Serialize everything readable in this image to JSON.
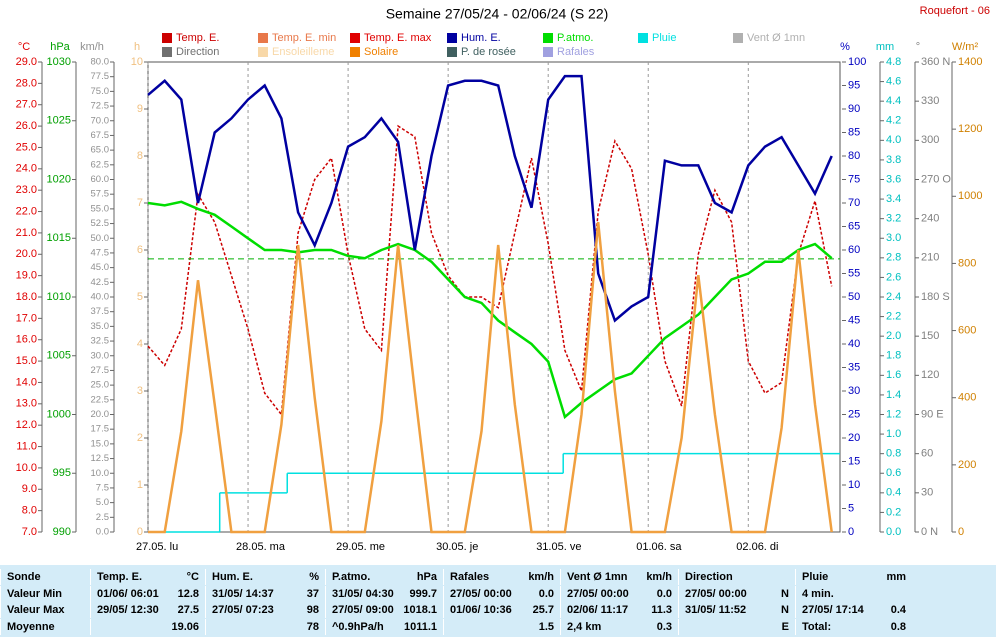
{
  "chart_data": {
    "type": "line",
    "title": "Semaine 27/05/24 - 02/06/24 (S 22)",
    "station": "Roquefort - 06",
    "xlim": [
      0,
      166
    ],
    "xticks": [
      {
        "value": 0,
        "label": "27.05.  lu"
      },
      {
        "value": 24,
        "label": "28.05.  ma"
      },
      {
        "value": 48,
        "label": "29.05.  me"
      },
      {
        "value": 72,
        "label": "30.05.  je"
      },
      {
        "value": 96,
        "label": "31.05.  ve"
      },
      {
        "value": 120,
        "label": "01.06.  sa"
      },
      {
        "value": 144,
        "label": "02.06.  di"
      }
    ],
    "x": [
      0,
      4,
      8,
      12,
      16,
      20,
      24,
      28,
      32,
      36,
      40,
      44,
      48,
      52,
      56,
      60,
      64,
      68,
      72,
      76,
      80,
      84,
      88,
      92,
      96,
      100,
      104,
      108,
      112,
      116,
      120,
      124,
      128,
      132,
      136,
      140,
      144,
      148,
      152,
      156,
      160,
      164
    ],
    "legend": [
      {
        "name": "Temp. E.",
        "color": "#cc0000"
      },
      {
        "name": "Temp. E. min",
        "color": "#e8784a"
      },
      {
        "name": "Temp. E. max",
        "color": "#e00000"
      },
      {
        "name": "Hum. E.",
        "color": "#0000a0"
      },
      {
        "name": "P.atmo.",
        "color": "#00dd00"
      },
      {
        "name": "Pluie",
        "color": "#00e0e0"
      },
      {
        "name": "Vent Ø 1mn",
        "color": "#b0b0b0"
      },
      {
        "name": "Direction",
        "color": "#707070"
      },
      {
        "name": "Ensoleilleme",
        "color": "#f8d8a8"
      },
      {
        "name": "Solaire",
        "color": "#f08000"
      },
      {
        "name": "P. de rosée",
        "color": "#406060"
      },
      {
        "name": "Rafales",
        "color": "#a0a0e0"
      }
    ],
    "axes": [
      {
        "label": "°C",
        "color": "#e00000",
        "lim": [
          7,
          29
        ],
        "ticks": [
          {
            "value": 29,
            "label": "29.0"
          },
          {
            "value": 28,
            "label": "28.0"
          },
          {
            "value": 27,
            "label": "27.0"
          },
          {
            "value": 26,
            "label": "26.0"
          },
          {
            "value": 25,
            "label": "25.0"
          },
          {
            "value": 24,
            "label": "24.0"
          },
          {
            "value": 23,
            "label": "23.0"
          },
          {
            "value": 22,
            "label": "22.0"
          },
          {
            "value": 21,
            "label": "21.0"
          },
          {
            "value": 20,
            "label": "20.0"
          },
          {
            "value": 19,
            "label": "19.0"
          },
          {
            "value": 18,
            "label": "18.0"
          },
          {
            "value": 17,
            "label": "17.0"
          },
          {
            "value": 16,
            "label": "16.0"
          },
          {
            "value": 15,
            "label": "15.0"
          },
          {
            "value": 14,
            "label": "14.0"
          },
          {
            "value": 13,
            "label": "13.0"
          },
          {
            "value": 12,
            "label": "12.0"
          },
          {
            "value": 11,
            "label": "11.0"
          },
          {
            "value": 10,
            "label": "10.0"
          },
          {
            "value": 9,
            "label": "9.0"
          },
          {
            "value": 8,
            "label": "8.0"
          },
          {
            "value": 7,
            "label": "7.0"
          }
        ],
        "series": [
          {
            "color": "#cc0000",
            "dashed": true,
            "values": [
              15.7,
              14.8,
              16.5,
              22.8,
              21.5,
              19.0,
              16.5,
              13.5,
              12.5,
              21.0,
              23.5,
              24.5,
              20.0,
              16.5,
              15.5,
              26.0,
              25.5,
              21.0,
              19.0,
              18.0,
              18.0,
              17.5,
              21.0,
              24.5,
              20.5,
              15.5,
              13.6,
              22.0,
              25.3,
              24.0,
              20.0,
              15.0,
              12.9,
              20.0,
              23.0,
              21.5,
              15.0,
              13.5,
              14.0,
              20.0,
              22.5,
              18.5
            ]
          }
        ]
      },
      {
        "label": "hPa",
        "color": "#00a000",
        "lim": [
          990,
          1030
        ],
        "ticks": [
          1030,
          1025,
          1020,
          1015,
          1010,
          1005,
          1000,
          995,
          990
        ],
        "reference": 1013.25,
        "series": [
          {
            "color": "#00dd00",
            "values": [
              1018,
              1017.8,
              1018.1,
              1017.5,
              1017,
              1016,
              1015,
              1014,
              1014,
              1013.8,
              1014,
              1014,
              1013.5,
              1013.3,
              1014,
              1014.5,
              1014,
              1013,
              1011.5,
              1010,
              1009.5,
              1008,
              1007,
              1006,
              1004.5,
              999.8,
              1001,
              1002,
              1003,
              1003.5,
              1005,
              1006.5,
              1007.5,
              1008.5,
              1010,
              1011.5,
              1012,
              1013,
              1013,
              1014,
              1014.5,
              1013.3
            ]
          }
        ]
      },
      {
        "label": "km/h",
        "color": "#909090",
        "lim": [
          0,
          80
        ],
        "ticks": [
          {
            "value": 80,
            "label": "80.0"
          },
          77.5,
          {
            "value": 75,
            "label": "75.0"
          },
          72.5,
          {
            "value": 70,
            "label": "70.0"
          },
          67.5,
          {
            "value": 65,
            "label": "65.0"
          },
          62.5,
          {
            "value": 60,
            "label": "60.0"
          },
          57.5,
          {
            "value": 55,
            "label": "55.0"
          },
          52.5,
          {
            "value": 50,
            "label": "50.0"
          },
          47.5,
          {
            "value": 45,
            "label": "45.0"
          },
          42.5,
          {
            "value": 40,
            "label": "40.0"
          },
          37.5,
          {
            "value": 35,
            "label": "35.0"
          },
          32.5,
          {
            "value": 30,
            "label": "30.0"
          },
          27.5,
          {
            "value": 25,
            "label": "25.0"
          },
          22.5,
          {
            "value": 20,
            "label": "20.0"
          },
          17.5,
          {
            "value": 15,
            "label": "15.0"
          },
          12.5,
          {
            "value": 10,
            "label": "10.0"
          },
          7.5,
          {
            "value": 5,
            "label": "5.0"
          },
          2.5,
          {
            "value": 0,
            "label": "0.0"
          }
        ]
      },
      {
        "label": "h",
        "color": "#f0c080",
        "lim": [
          0,
          10
        ],
        "ticks": [
          10,
          9,
          8,
          7,
          6,
          5,
          4,
          3,
          2,
          1,
          0
        ]
      },
      {
        "label": "%",
        "color": "#0000c0",
        "lim": [
          0,
          100
        ],
        "ticks": [
          100,
          95,
          90,
          85,
          80,
          75,
          70,
          65,
          60,
          55,
          50,
          45,
          40,
          35,
          30,
          25,
          20,
          15,
          10,
          5,
          0
        ],
        "series": [
          {
            "color": "#0000a0",
            "values": [
              93,
              96,
              92,
              70,
              85,
              88,
              92,
              95,
              88,
              68,
              61,
              70,
              82,
              84,
              88,
              83,
              60,
              80,
              95,
              96,
              96,
              95,
              80,
              69,
              92,
              97,
              97,
              55,
              45,
              48,
              50,
              79,
              78,
              78,
              70,
              68,
              78,
              82,
              84,
              78,
              72,
              80
            ]
          }
        ]
      },
      {
        "label": "mm",
        "color": "#00c0c0",
        "lim": [
          0,
          4.8
        ],
        "ticks": [
          4.8,
          4.6,
          4.4,
          4.2,
          {
            "value": 4,
            "label": "4.0"
          },
          3.8,
          3.6,
          3.4,
          3.2,
          {
            "value": 3,
            "label": "3.0"
          },
          2.8,
          2.6,
          2.4,
          2.2,
          {
            "value": 2,
            "label": "2.0"
          },
          1.8,
          1.6,
          1.4,
          1.2,
          {
            "value": 1,
            "label": "1.0"
          },
          0.8,
          0.6,
          0.4,
          0.2,
          {
            "value": 0,
            "label": "0.0"
          }
        ],
        "steps": {
          "color": "#00e0e0",
          "x": [
            0,
            17.2,
            33.4,
            99.6,
            166
          ],
          "values": [
            0,
            0.4,
            0.6,
            0.8,
            0.8
          ]
        }
      },
      {
        "label": "°",
        "color": "#808080",
        "lim": [
          0,
          360
        ],
        "ticks": [
          {
            "value": 360,
            "label": "360 N"
          },
          330,
          300,
          {
            "value": 270,
            "label": "270 O"
          },
          240,
          210,
          {
            "value": 180,
            "label": "180 S"
          },
          150,
          120,
          {
            "value": 90,
            "label": "90 E"
          },
          60,
          30,
          {
            "value": 0,
            "label": "0 N"
          }
        ]
      },
      {
        "label": "W/m²",
        "color": "#d08000",
        "lim": [
          0,
          1400
        ],
        "ticks": [
          1400,
          1200,
          1000,
          800,
          600,
          400,
          200,
          0
        ],
        "series": [
          {
            "color": "#f0a040",
            "values": [
              0,
              0,
              300,
              750,
              380,
              0,
              0,
              0,
              320,
              855,
              400,
              0,
              0,
              0,
              330,
              855,
              420,
              0,
              0,
              0,
              300,
              855,
              380,
              0,
              0,
              0,
              350,
              923,
              420,
              0,
              0,
              0,
              280,
              765,
              350,
              0,
              0,
              0,
              310,
              840,
              380,
              0
            ]
          }
        ]
      }
    ]
  },
  "table": {
    "header": [
      "Sonde",
      {
        "l": "Temp. E.",
        "r": "°C"
      },
      {
        "l": "Hum. E.",
        "r": "%"
      },
      {
        "l": "P.atmo.",
        "r": "hPa"
      },
      {
        "l": "Rafales",
        "r": "km/h"
      },
      {
        "l": "Vent Ø 1mn",
        "r": "km/h"
      },
      {
        "l": "Direction"
      },
      {
        "l": "Pluie",
        "r": "mm"
      }
    ],
    "rows": [
      [
        "Valeur Min",
        {
          "l": "01/06/ 06:01",
          "r": "12.8"
        },
        {
          "l": "31/05/ 14:37",
          "r": "37"
        },
        {
          "l": "31/05/ 04:30",
          "r": "999.7"
        },
        {
          "l": "27/05/ 00:00",
          "r": "0.0"
        },
        {
          "l": "27/05/ 00:00",
          "r": "0.0"
        },
        {
          "l": "27/05/ 00:00",
          "r": "N"
        },
        {
          "l": "4 min."
        }
      ],
      [
        "Valeur Max",
        {
          "l": "29/05/ 12:30",
          "r": "27.5"
        },
        {
          "l": "27/05/ 07:23",
          "r": "98"
        },
        {
          "l": "27/05/ 09:00",
          "r": "1018.1"
        },
        {
          "l": "01/06/ 10:36",
          "r": "25.7"
        },
        {
          "l": "02/06/ 11:17",
          "r": "11.3"
        },
        {
          "l": "31/05/ 11:52",
          "r": "N"
        },
        {
          "l": "27/05/ 17:14",
          "r": "0.4"
        }
      ],
      [
        "Moyenne",
        {
          "r": "19.06"
        },
        {
          "r": "78"
        },
        {
          "l": "^0.9hPa/h",
          "r": "1011.1"
        },
        {
          "r": "1.5"
        },
        {
          "l": "2,4 km",
          "r": "0.3"
        },
        {
          "r": "E"
        },
        {
          "l": "Total:",
          "r": "0.8"
        }
      ]
    ]
  }
}
